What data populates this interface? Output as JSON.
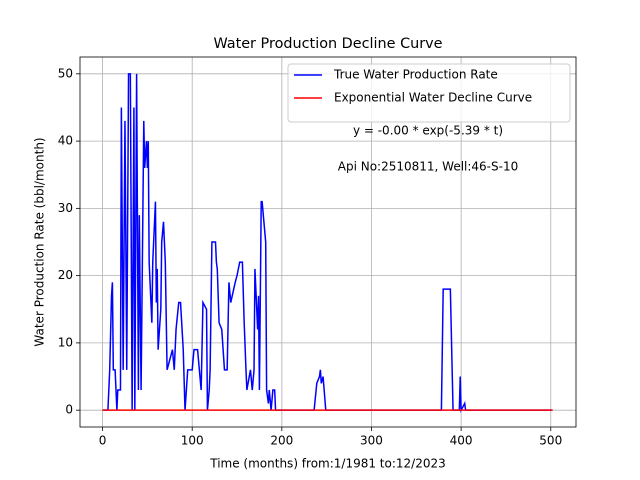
{
  "chart_data": {
    "type": "line",
    "title": "Water Production Decline Curve",
    "xlabel": "Time (months) from:1/1981 to:12/2023",
    "ylabel": "Water Production Rate (bbl/month)",
    "annotations": [
      "y = -0.00 * exp(-5.39 * t)",
      "Api No:2510811, Well:46-S-10"
    ],
    "xlim": [
      -25.15,
      528.15
    ],
    "xticks": [
      0,
      100,
      200,
      300,
      400,
      500
    ],
    "ylim": [
      -2.5,
      52.5
    ],
    "yticks": [
      0,
      10,
      20,
      30,
      40,
      50
    ],
    "grid": true,
    "legend": "upper right",
    "series": [
      {
        "name": "True Water Production Rate",
        "color": "#0000ff",
        "x": [
          0,
          6,
          8,
          10,
          11,
          12,
          14,
          16,
          17,
          20,
          21,
          23,
          25,
          27,
          29,
          31,
          33,
          35,
          36,
          38,
          40,
          41,
          43,
          46,
          47,
          49,
          50,
          51,
          52,
          55,
          56,
          59,
          60,
          61,
          62,
          65,
          66,
          68,
          70,
          72,
          78,
          80,
          82,
          85,
          87,
          90,
          92,
          95,
          100,
          102,
          106,
          108,
          110,
          112,
          116,
          117,
          119,
          120,
          122,
          126,
          127,
          128,
          130,
          133,
          136,
          139,
          141,
          143,
          148,
          150,
          153,
          156,
          158,
          160,
          161,
          165,
          167,
          169,
          170,
          173,
          174,
          175,
          177,
          178,
          182,
          183,
          185,
          186,
          188,
          190,
          192,
          193,
          236,
          239,
          242,
          243,
          244,
          246,
          249,
          378,
          380,
          388,
          391,
          398,
          399,
          400,
          404,
          405,
          502
        ],
        "values": [
          0,
          0,
          6,
          17,
          19,
          6,
          6,
          0,
          3,
          3,
          45,
          6,
          43,
          6,
          50,
          50,
          0,
          45,
          0,
          50,
          3,
          29,
          3,
          43,
          36,
          40,
          36,
          40,
          22,
          13,
          22,
          31,
          16,
          21,
          9,
          15,
          25,
          28,
          22,
          6,
          9,
          6,
          12,
          16,
          16,
          9,
          0,
          6,
          6,
          9,
          9,
          6,
          3,
          16,
          15,
          0,
          3,
          6,
          25,
          25,
          22,
          21,
          13,
          12,
          6,
          6,
          19,
          16,
          19,
          20,
          22,
          22,
          13,
          6,
          3,
          6,
          3,
          6,
          21,
          12,
          17,
          3,
          31,
          31,
          25,
          3,
          1,
          3,
          0,
          3,
          3,
          0,
          0,
          4,
          5,
          6,
          4,
          5,
          0,
          0,
          18,
          18,
          0,
          0,
          5,
          0,
          1,
          0,
          0
        ]
      },
      {
        "name": "Exponential Water Decline Curve",
        "color": "#ff0000",
        "x": [
          0,
          502
        ],
        "values": [
          0,
          0
        ]
      }
    ]
  }
}
